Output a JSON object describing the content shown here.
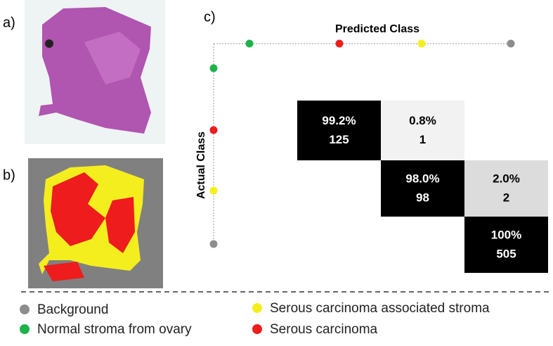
{
  "panels": {
    "a": "a)",
    "b": "b)",
    "c": "c)"
  },
  "confusion_matrix": {
    "x_title": "Predicted Class",
    "y_title": "Actual Class",
    "class_colors": [
      "#1db34a",
      "#ee1c1c",
      "#f5ee1e",
      "#8c8c8c"
    ],
    "rows": [
      [
        null,
        null,
        null,
        null
      ],
      [
        null,
        {
          "percent": "99.2%",
          "count": 125,
          "fill": "#000000"
        },
        {
          "percent": "0.8%",
          "count": 1,
          "fill": "#f2f2f2"
        },
        null
      ],
      [
        null,
        null,
        {
          "percent": "98.0%",
          "count": 98,
          "fill": "#000000"
        },
        {
          "percent": "2.0%",
          "count": 2,
          "fill": "#dcdcdc"
        }
      ],
      [
        null,
        null,
        null,
        {
          "percent": "100%",
          "count": 505,
          "fill": "#000000"
        }
      ]
    ]
  },
  "legend": [
    {
      "label": "Background",
      "color": "#8c8c8c"
    },
    {
      "label": "Serous carcinoma associated stroma",
      "color": "#f5ee1e"
    },
    {
      "label": "Normal stroma from ovary",
      "color": "#1db34a"
    },
    {
      "label": "Serous carcinoma",
      "color": "#ee1c1c"
    }
  ]
}
